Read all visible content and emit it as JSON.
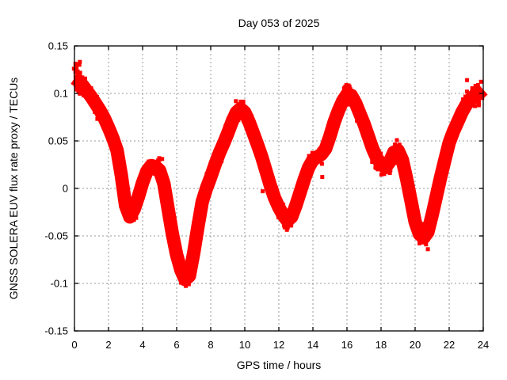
{
  "chart_data": {
    "type": "scatter",
    "title": "Day 053 of 2025",
    "xlabel": "GPS time / hours",
    "ylabel": "GNSS SOLERA EUV flux rate proxy / TECUs",
    "xlim": [
      0,
      24
    ],
    "ylim": [
      -0.15,
      0.15
    ],
    "grid": true,
    "legend_position": "none",
    "x_ticks": [
      0,
      2,
      4,
      6,
      8,
      10,
      12,
      14,
      16,
      18,
      20,
      22,
      24
    ],
    "x_tick_labels": [
      "0",
      "2",
      "4",
      "6",
      "8",
      "10",
      "12",
      "14",
      "16",
      "18",
      "20",
      "22",
      "24"
    ],
    "y_ticks": [
      0.15,
      0.1,
      0.05,
      0,
      -0.05,
      -0.1,
      -0.15
    ],
    "y_tick_labels": [
      "0.15",
      "0.1",
      "0.05",
      "0",
      "-0.05",
      "-0.1",
      "-0.15"
    ],
    "colors": {
      "points": "#ff0000",
      "grid": "#9a9a9a",
      "axis": "#000000",
      "background": "#ffffff"
    },
    "series": [
      {
        "name": "EUV flux rate proxy",
        "marker": "filled-square",
        "color": "#ff0000",
        "x": {
          "start": 0,
          "end": 24,
          "step": 0.25,
          "units": "hours"
        },
        "y_center": [
          0.116,
          0.113,
          0.108,
          0.102,
          0.096,
          0.089,
          0.082,
          0.074,
          0.064,
          0.053,
          0.04,
          0.014,
          -0.018,
          -0.03,
          -0.022,
          -0.009,
          0.006,
          0.018,
          0.024,
          0.023,
          0.019,
          0.005,
          -0.022,
          -0.048,
          -0.07,
          -0.086,
          -0.096,
          -0.092,
          -0.068,
          -0.04,
          -0.014,
          0.0,
          0.012,
          0.025,
          0.037,
          0.047,
          0.058,
          0.07,
          0.08,
          0.084,
          0.08,
          0.07,
          0.058,
          0.046,
          0.033,
          0.018,
          0.003,
          -0.01,
          -0.02,
          -0.028,
          -0.034,
          -0.03,
          -0.018,
          -0.004,
          0.01,
          0.022,
          0.03,
          0.033,
          0.036,
          0.042,
          0.055,
          0.07,
          0.082,
          0.092,
          0.099,
          0.098,
          0.09,
          0.079,
          0.068,
          0.055,
          0.042,
          0.032,
          0.026,
          0.022,
          0.028,
          0.038,
          0.04,
          0.03,
          0.01,
          -0.012,
          -0.035,
          -0.048,
          -0.052,
          -0.046,
          -0.028,
          -0.008,
          0.012,
          0.03,
          0.048,
          0.06,
          0.07,
          0.08,
          0.088,
          0.094,
          0.098,
          0.1,
          0.104
        ],
        "band_halfwidth": 0.011,
        "outliers": [
          [
            5.15,
            0.031
          ],
          [
            10.8,
            0.047
          ],
          [
            11.05,
            -0.003
          ],
          [
            14.55,
            0.012
          ],
          [
            20.75,
            -0.064
          ],
          [
            23.05,
            0.114
          ]
        ]
      }
    ]
  }
}
